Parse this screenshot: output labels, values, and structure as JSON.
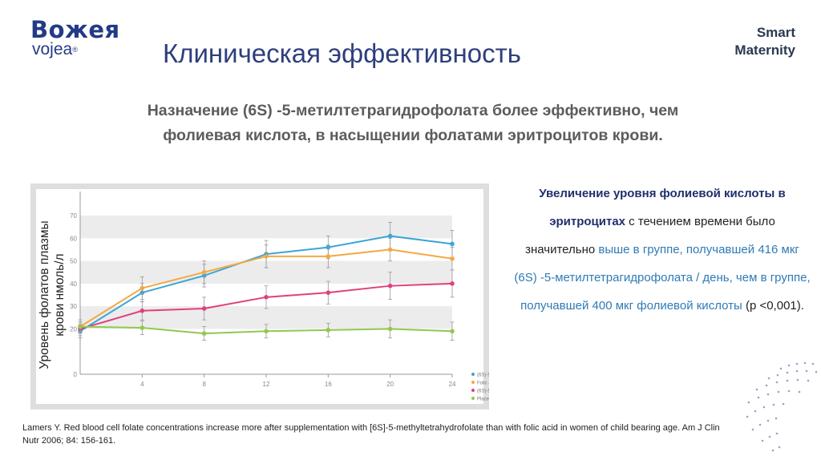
{
  "header": {
    "logo_top": "Вожея",
    "logo_bottom": "vojea",
    "logo_reg": "®",
    "title": "Клиническая эффективность",
    "brand_line1": "Smart",
    "brand_line2": "Maternity"
  },
  "subtitle": {
    "line1": "Назначение (6S) -5-метилтетрагидрофолата более эффективно, чем",
    "line2": "фолиевая кислота, в насыщении фолатами эритроцитов крови."
  },
  "description": {
    "part1": "Увеличение уровня фолиевой кислоты в эритроцитах",
    "part2": " с течением времени было значительно ",
    "part3": "выше в группе, получавшей",
    "part4": " 416 мкг (6S) -5-метилтетрагидрофолата / день, чем в группе, получавшей 400 мкг",
    "part5": " фолиевой кислоты",
    "part6": " (p <0,001)."
  },
  "citation": "Lamers Y. Red blood cell folate concentrations increase more after supplementation with [6S]-5-methyltetrahydrofolate than with folic acid in women of child bearing age. Am J Clin Nutr 2006; 84: 156-161.",
  "chart_data": {
    "type": "line",
    "title": "",
    "xlabel": "",
    "ylabel": "Уровень фолатов плазмы крови нмоль/л",
    "xlim": [
      0,
      24
    ],
    "ylim": [
      0,
      70
    ],
    "x_ticks": [
      4,
      8,
      12,
      16,
      20,
      24
    ],
    "y_ticks": [
      0,
      20,
      30,
      40,
      50,
      60,
      70
    ],
    "x": [
      0,
      4,
      8,
      12,
      16,
      20,
      24
    ],
    "series": [
      {
        "name": "(6S)-5-methyltetrahydrofolate, 416 μg/day",
        "color": "#3aa6d8",
        "values": [
          19,
          36,
          43.5,
          53,
          56,
          61,
          57.5
        ],
        "errors": [
          3,
          4,
          5,
          6,
          5,
          6,
          6
        ]
      },
      {
        "name": "Folic acid, 400 μg/day",
        "color": "#f5a842",
        "values": [
          21,
          38,
          45,
          52,
          52,
          55,
          51
        ],
        "errors": [
          3,
          5,
          5,
          5,
          5,
          5,
          5
        ]
      },
      {
        "name": "(6S)-5-methyltetrahydrofolate, 208 μg/day",
        "color": "#e0407e",
        "values": [
          20,
          28,
          29,
          34,
          36,
          39,
          40
        ],
        "errors": [
          3,
          4,
          5,
          5,
          5,
          6,
          6
        ]
      },
      {
        "name": "Placebo",
        "color": "#92c84f",
        "values": [
          21,
          20.5,
          18,
          19,
          19.5,
          20,
          19
        ],
        "errors": [
          2,
          3,
          3,
          3,
          3,
          4,
          4
        ]
      }
    ]
  }
}
